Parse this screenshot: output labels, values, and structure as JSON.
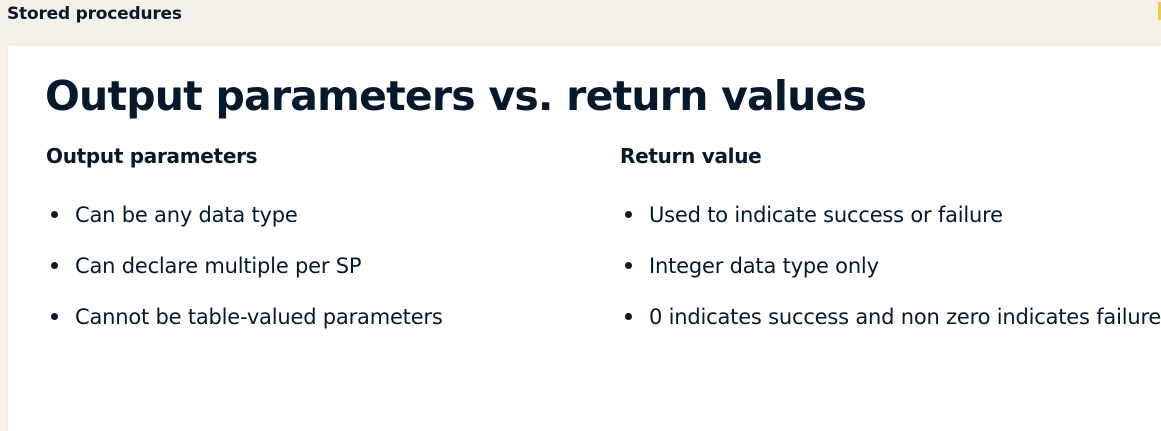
{
  "header": {
    "title": "Stored procedures"
  },
  "slide": {
    "title": "Output parameters vs. return values",
    "left": {
      "heading": "Output parameters",
      "items": [
        "Can be any data type",
        "Can declare multiple per SP",
        "Cannot be table-valued parameters"
      ]
    },
    "right": {
      "heading": "Return value",
      "items": [
        "Used to indicate success or failure",
        "Integer data type only",
        "0 indicates success and non zero indicates failure"
      ]
    }
  },
  "colors": {
    "text": "#05192d",
    "header_bg": "#f5f1e8",
    "slide_bg": "#ffffff",
    "accent": "#f0c94d"
  }
}
